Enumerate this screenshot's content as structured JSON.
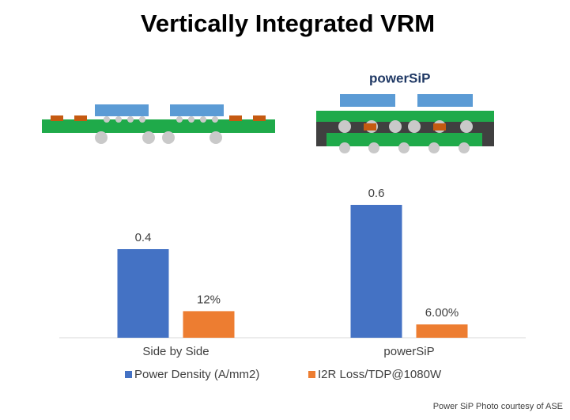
{
  "chart_data": {
    "type": "bar",
    "title": "Vertically Integrated VRM",
    "categories": [
      "Side by Side",
      "powerSiP"
    ],
    "series": [
      {
        "name": "Power Density (A/mm2)",
        "color": "#4472c4",
        "values": [
          0.4,
          0.6
        ]
      },
      {
        "name": "I2R Loss/TDP@1080W",
        "color": "#ed7d31",
        "values": [
          12,
          6
        ],
        "value_labels": [
          "12%",
          "6.00%"
        ],
        "axis": "y2"
      }
    ],
    "ylim": [
      0,
      0.7
    ],
    "y2lim": [
      0,
      70
    ],
    "legend": "bottom"
  },
  "logo": "powerSiP",
  "credit": "Power SiP Photo courtesy of ASE"
}
